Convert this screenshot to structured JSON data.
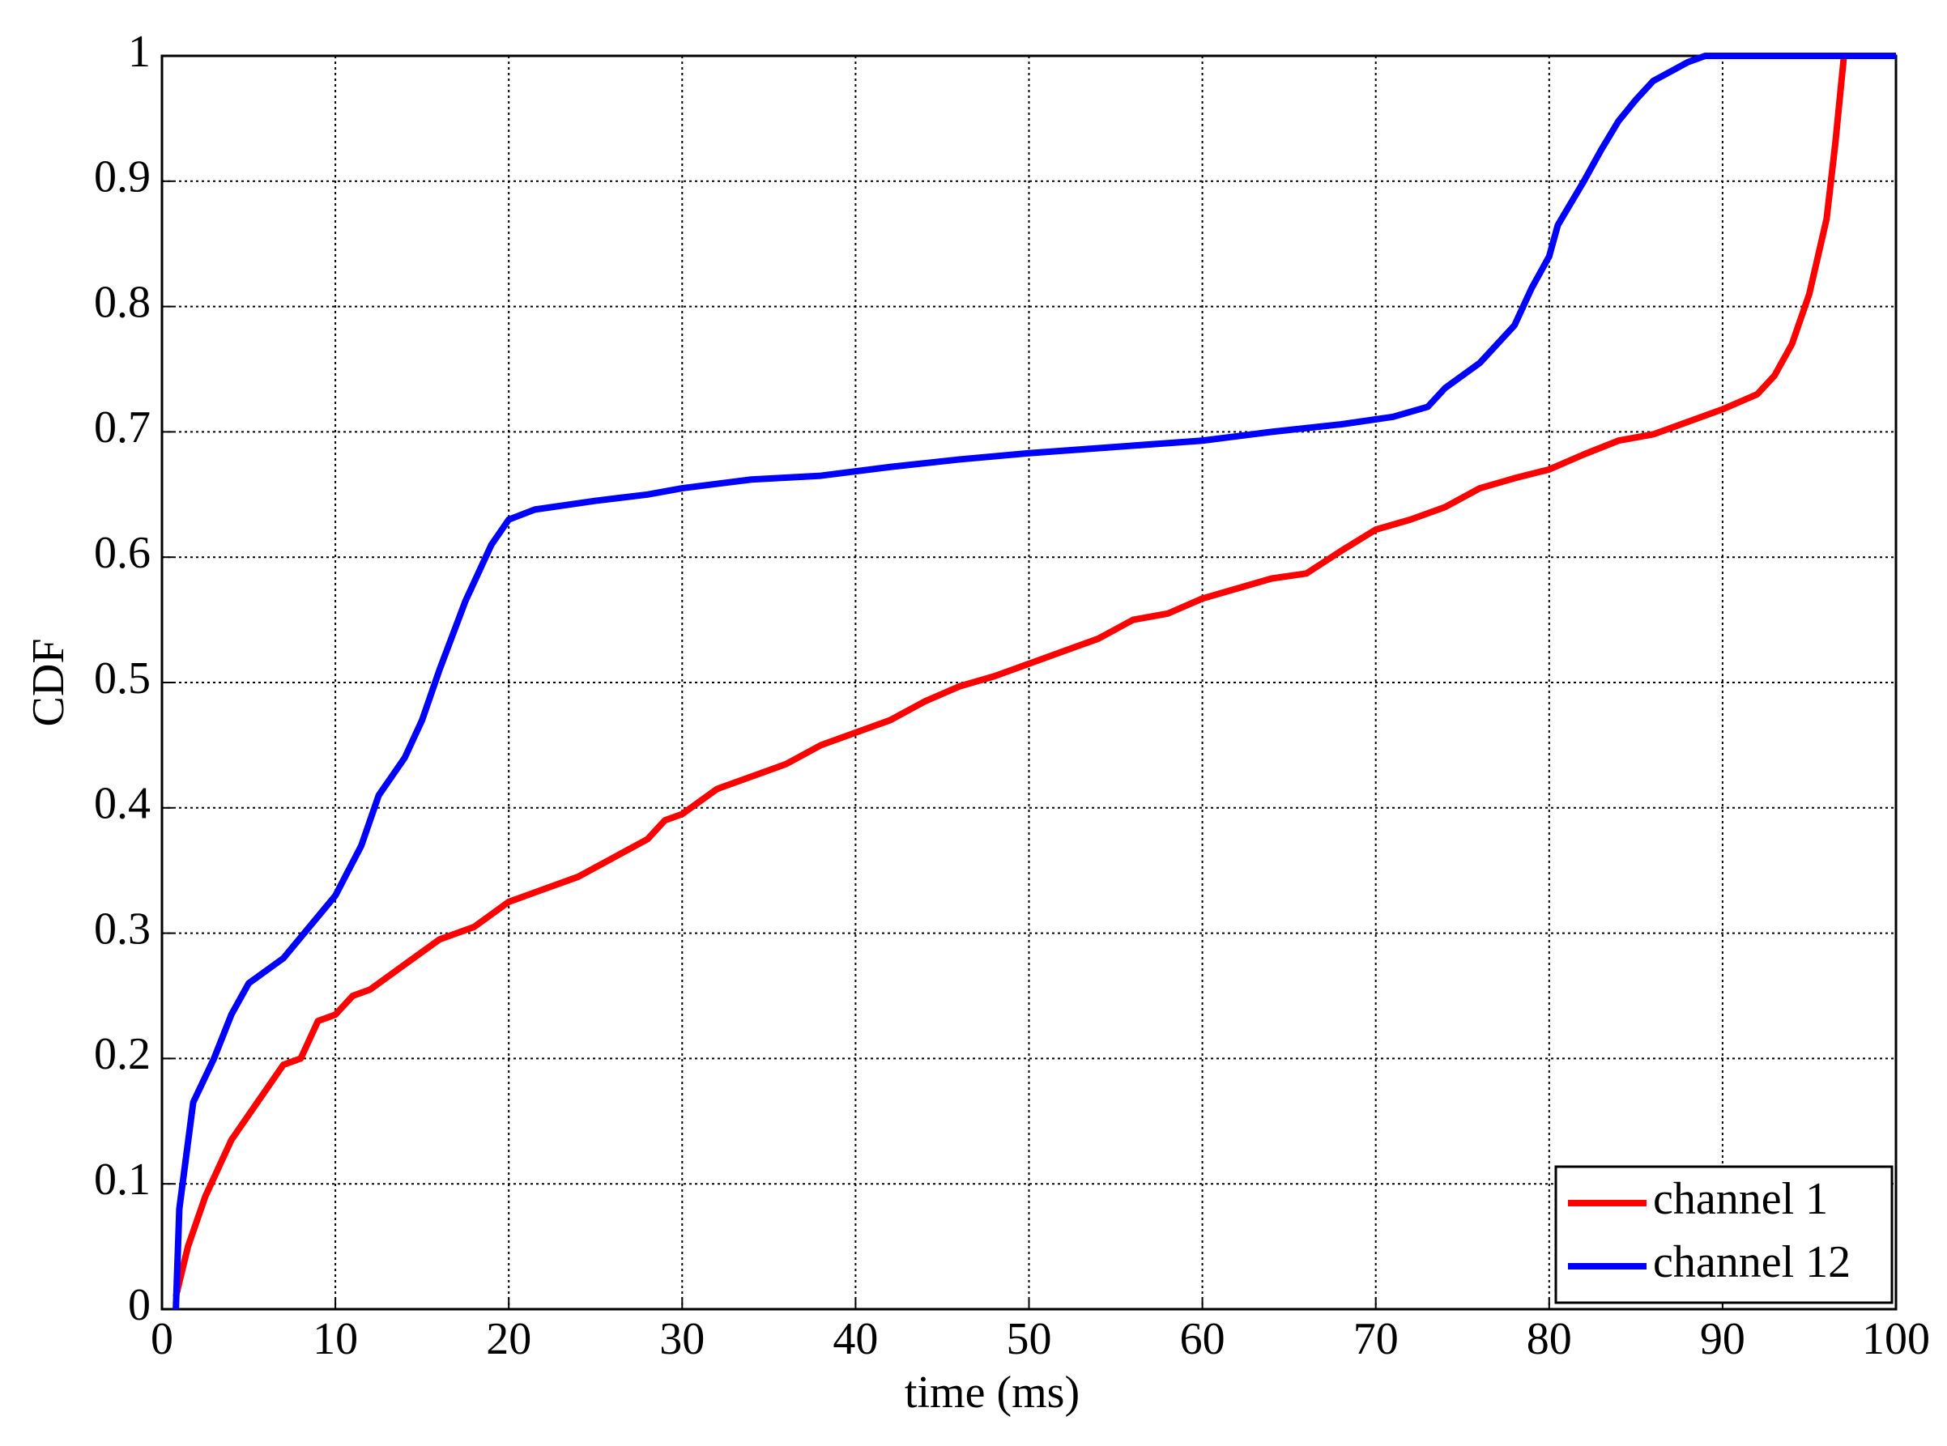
{
  "chart_data": {
    "type": "line",
    "xlabel": "time (ms)",
    "ylabel": "CDF",
    "xlim": [
      0,
      100
    ],
    "ylim": [
      0,
      1
    ],
    "xticks": [
      0,
      10,
      20,
      30,
      40,
      50,
      60,
      70,
      80,
      90,
      100
    ],
    "yticks": [
      0,
      0.1,
      0.2,
      0.3,
      0.4,
      0.5,
      0.6,
      0.7,
      0.8,
      0.9,
      1
    ],
    "grid": true,
    "legend": "lower right",
    "series": [
      {
        "name": "channel 1",
        "color": "#ff0000",
        "x": [
          0.8,
          1.5,
          2.5,
          4,
          5.5,
          7,
          8,
          9,
          10,
          11,
          12,
          14,
          16,
          18,
          20,
          22,
          24,
          26,
          28,
          29,
          30,
          32,
          34,
          36,
          38,
          40,
          42,
          44,
          46,
          48,
          50,
          52,
          54,
          56,
          58,
          60,
          62,
          64,
          66,
          68,
          70,
          72,
          74,
          76,
          78,
          80,
          82,
          84,
          86,
          88,
          90,
          92,
          93,
          94,
          95,
          96,
          96.5,
          97,
          100
        ],
        "values": [
          0.01,
          0.05,
          0.09,
          0.135,
          0.165,
          0.195,
          0.2,
          0.23,
          0.235,
          0.25,
          0.255,
          0.275,
          0.295,
          0.305,
          0.325,
          0.335,
          0.345,
          0.36,
          0.375,
          0.39,
          0.395,
          0.415,
          0.425,
          0.435,
          0.45,
          0.46,
          0.47,
          0.485,
          0.497,
          0.505,
          0.515,
          0.525,
          0.535,
          0.55,
          0.555,
          0.567,
          0.575,
          0.583,
          0.587,
          0.605,
          0.622,
          0.63,
          0.64,
          0.655,
          0.663,
          0.67,
          0.682,
          0.693,
          0.698,
          0.708,
          0.718,
          0.73,
          0.745,
          0.77,
          0.81,
          0.87,
          0.93,
          1,
          1
        ]
      },
      {
        "name": "channel 12",
        "color": "#0000ff",
        "x": [
          0.8,
          1,
          1.8,
          3,
          4,
          5,
          7,
          8.5,
          10,
          11.5,
          12.5,
          14,
          15,
          16,
          17.5,
          19,
          20,
          21.5,
          25,
          28,
          30,
          34,
          38,
          42,
          46,
          50,
          55,
          60,
          64,
          68,
          71,
          73,
          74,
          76,
          78,
          79,
          80,
          80.5,
          82,
          83,
          84,
          85,
          86,
          88,
          89,
          100
        ],
        "values": [
          0,
          0.08,
          0.165,
          0.2,
          0.235,
          0.26,
          0.28,
          0.305,
          0.33,
          0.37,
          0.41,
          0.44,
          0.47,
          0.51,
          0.565,
          0.61,
          0.63,
          0.638,
          0.645,
          0.65,
          0.655,
          0.662,
          0.665,
          0.672,
          0.678,
          0.683,
          0.688,
          0.693,
          0.7,
          0.706,
          0.712,
          0.72,
          0.735,
          0.755,
          0.785,
          0.815,
          0.84,
          0.865,
          0.9,
          0.925,
          0.948,
          0.965,
          0.98,
          0.995,
          1,
          1
        ]
      }
    ]
  }
}
